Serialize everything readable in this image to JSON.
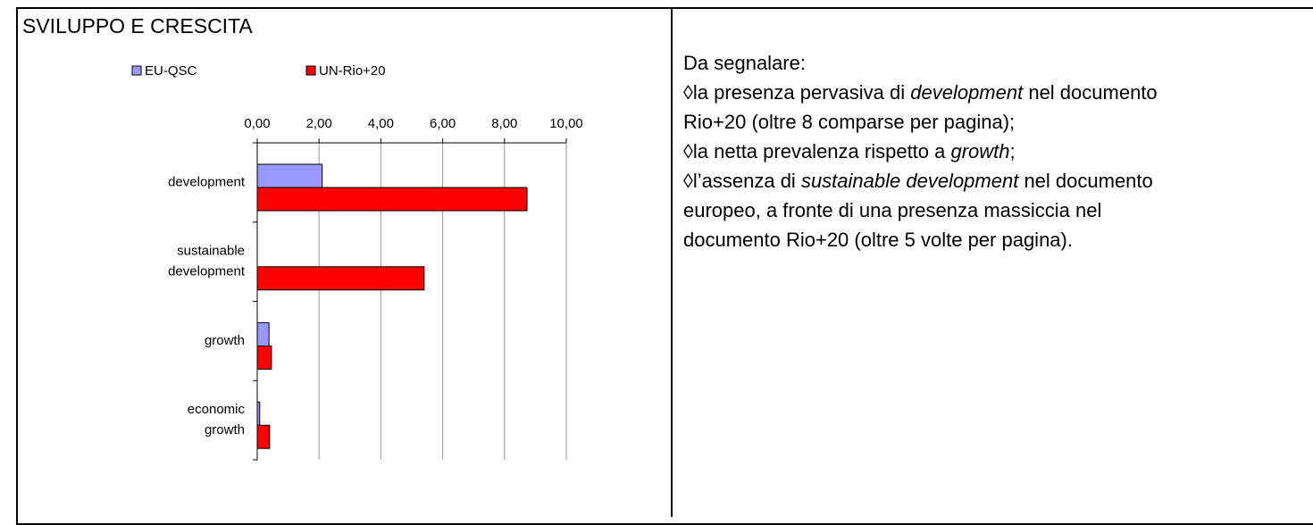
{
  "chart_data": {
    "type": "hbar",
    "title": "SVILUPPO E CRESCITA",
    "categories": [
      "development",
      "sustainable development",
      "growth",
      "economic growth"
    ],
    "series": [
      {
        "name": "EU-QSC",
        "color": "#9999ff",
        "values": [
          2.1,
          0,
          0.38,
          0.08
        ]
      },
      {
        "name": "UN-Rio+20",
        "color": "#ff0000",
        "values": [
          8.73,
          5.4,
          0.46,
          0.4
        ]
      }
    ],
    "xlim": [
      0,
      10
    ],
    "xticks": [
      {
        "value": 0,
        "label": "0,00"
      },
      {
        "value": 2,
        "label": "2,00"
      },
      {
        "value": 4,
        "label": "4,00"
      },
      {
        "value": 6,
        "label": "6,00"
      },
      {
        "value": 8,
        "label": "8,00"
      },
      {
        "value": 10,
        "label": "10,00"
      }
    ],
    "grid": true,
    "legend": "top"
  },
  "notes": [
    [
      {
        "text": "Da segnalare:"
      }
    ],
    [
      {
        "text": "◊la presenza pervasiva di "
      },
      {
        "text": "development",
        "italic": true
      },
      {
        "text": " nel documento"
      }
    ],
    [
      {
        "text": "Rio+20 (oltre 8 comparse per pagina);"
      }
    ],
    [
      {
        "text": "◊la netta prevalenza rispetto a "
      },
      {
        "text": "growth",
        "italic": true
      },
      {
        "text": ";"
      }
    ],
    [
      {
        "text": "◊l’assenza di "
      },
      {
        "text": "sustainable development",
        "italic": true
      },
      {
        "text": " nel documento"
      }
    ],
    [
      {
        "text": "europeo, a fronte di una presenza massiccia nel"
      }
    ],
    [
      {
        "text": "documento Rio+20 (oltre 5 volte per pagina)."
      }
    ]
  ]
}
